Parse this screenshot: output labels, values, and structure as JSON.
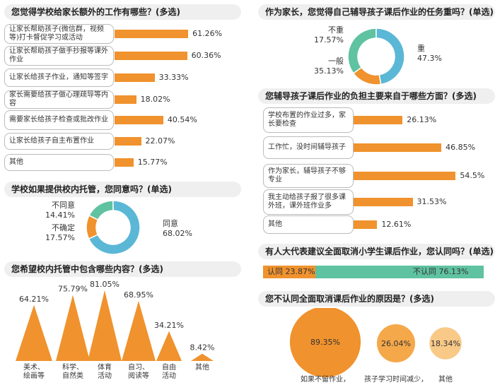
{
  "q1": {
    "title": "您觉得学校给家长额外的工作有哪些？(多选)",
    "chart_data": {
      "type": "bar",
      "categories": [
        "让家长帮助孩子(微信群，视频等)打卡督促学习或活动",
        "让家长帮助孩子做手抄报等课外作业",
        "让家长给孩子作业，通知等签字",
        "家长需要给孩子做心理疏导等内容",
        "需要家长给孩子检查或批改作业",
        "让家长给孩子自主布置作业",
        "其他"
      ],
      "values": [
        61.26,
        60.36,
        33.33,
        18.02,
        40.54,
        22.07,
        15.77
      ],
      "value_labels": [
        "61.26%",
        "60.36%",
        "33.33%",
        "18.02%",
        "40.54%",
        "22.07%",
        "15.77%"
      ],
      "bar_color": "#f0922d"
    }
  },
  "q2": {
    "title": "学校如果提供校内托管，您同意吗？(单选)",
    "chart_data": {
      "type": "pie",
      "categories": [
        "不同意",
        "不确定",
        "同意"
      ],
      "values": [
        14.41,
        17.57,
        68.02
      ],
      "value_labels": [
        "14.41%",
        "17.57%",
        "68.02%"
      ],
      "colors": [
        "#f0922d",
        "#5fc2a0",
        "#5bb7d6"
      ]
    }
  },
  "q3": {
    "title": "您希望校内托管中包含哪些内容？(多选)",
    "chart_data": {
      "type": "bar",
      "categories": [
        "美术、绘画等",
        "科学、自然类",
        "体育活动",
        "自习、阅读等",
        "自由活动",
        "其他"
      ],
      "values": [
        64.21,
        75.79,
        81.05,
        68.95,
        34.21,
        8.42
      ],
      "value_labels": [
        "64.21%",
        "75.79%",
        "81.05%",
        "68.95%",
        "34.21%",
        "8.42%"
      ],
      "bar_color": "#f0922d"
    }
  },
  "q4": {
    "title": "作为家长，您觉得自己辅导孩子课后作业的任务重吗？(单选)",
    "chart_data": {
      "type": "pie",
      "categories": [
        "不重",
        "一般",
        "重"
      ],
      "values": [
        17.57,
        35.13,
        47.3
      ],
      "value_labels": [
        "17.57%",
        "35.13%",
        "47.3%"
      ],
      "colors": [
        "#f0922d",
        "#5fc2a0",
        "#5bb7d6"
      ]
    }
  },
  "q5": {
    "title": "您辅导孩子课后作业的负担主要来自于哪些方面？(多选)",
    "chart_data": {
      "type": "bar",
      "categories": [
        "学校布置的作业过多，家长要检查",
        "工作忙，没时间辅导孩子",
        "作为家长，辅导孩子不够专业",
        "我主动给孩子报了很多课外班，课外班作业多",
        "其他"
      ],
      "values": [
        26.13,
        46.85,
        54.5,
        31.53,
        12.61
      ],
      "value_labels": [
        "26.13%",
        "46.85%",
        "54.5%",
        "31.53%",
        "12.61%"
      ],
      "bar_color": "#f0922d"
    }
  },
  "q6": {
    "title": "有人大代表建议全面取消小学生课后作业，您认同吗？(单选)",
    "chart_data": {
      "type": "bar",
      "categories": [
        "认同",
        "不认同"
      ],
      "values": [
        23.87,
        76.13
      ],
      "value_labels": [
        "23.87%",
        "76.13%"
      ],
      "colors": [
        "#f0922d",
        "#5fc2a0"
      ]
    }
  },
  "q7": {
    "title": "您不认同全面取消课后作业的原因是？(多选)",
    "chart_data": {
      "type": "bubble",
      "categories": [
        "如果不留作业，",
        "孩子学习时间减少，",
        "其他"
      ],
      "values": [
        89.35,
        26.04,
        18.34
      ],
      "value_labels": [
        "89.35%",
        "26.04%",
        "18.34%"
      ],
      "colors": [
        "#f0922d",
        "#f5a84a",
        "#f8c987"
      ]
    }
  }
}
